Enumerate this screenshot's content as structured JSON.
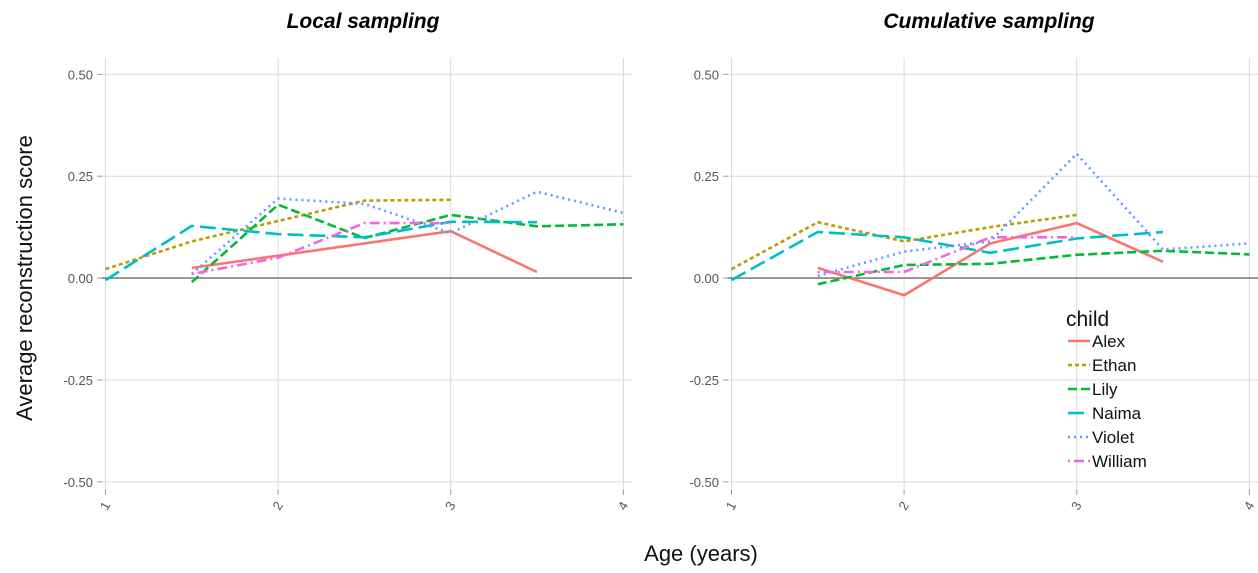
{
  "chart_data": {
    "type": "line",
    "ylabel": "Average reconstruction score",
    "xlabel": "Age (years)",
    "xlim": [
      0.98,
      4.05
    ],
    "ylim": [
      -0.52,
      0.54
    ],
    "x_ticks": [
      1,
      2,
      3,
      4
    ],
    "x_tick_labels": [
      "1",
      "2",
      "3",
      "4"
    ],
    "y_ticks": [
      0.5,
      0.25,
      0.0,
      -0.25,
      -0.5
    ],
    "y_tick_labels": [
      "0.50",
      "0.25",
      "0.00",
      "-0.25",
      "-0.50"
    ],
    "grid": true,
    "legend": {
      "title": "child",
      "placement": "bottom-right of right panel",
      "entries": [
        "Alex",
        "Ethan",
        "Lily",
        "Naima",
        "Violet",
        "William"
      ]
    },
    "series_styles": [
      {
        "name": "Alex",
        "color": "#F8766D",
        "dash": "solid"
      },
      {
        "name": "Ethan",
        "color": "#B79F00",
        "dash": "dotted-short"
      },
      {
        "name": "Lily",
        "color": "#00BA38",
        "dash": "dashed"
      },
      {
        "name": "Naima",
        "color": "#00BFC4",
        "dash": "long-dashed"
      },
      {
        "name": "Violet",
        "color": "#619CFF",
        "dash": "dotted"
      },
      {
        "name": "William",
        "color": "#F564E3",
        "dash": "dot-dash"
      }
    ],
    "panels": [
      {
        "title": "Local sampling",
        "series": [
          {
            "name": "Alex",
            "x": [
              1.5,
              3.0,
              3.5
            ],
            "y": [
              0.025,
              0.115,
              0.015
            ]
          },
          {
            "name": "Ethan",
            "x": [
              1.0,
              1.5,
              2.0,
              2.5,
              3.0
            ],
            "y": [
              0.022,
              0.09,
              0.14,
              0.19,
              0.192
            ]
          },
          {
            "name": "Lily",
            "x": [
              1.5,
              2.0,
              2.5,
              3.0,
              3.5,
              4.0
            ],
            "y": [
              -0.01,
              0.18,
              0.098,
              0.155,
              0.127,
              0.132
            ]
          },
          {
            "name": "Naima",
            "x": [
              1.0,
              1.5,
              2.0,
              2.5,
              3.0,
              3.5
            ],
            "y": [
              -0.005,
              0.128,
              0.108,
              0.1,
              0.138,
              0.137
            ]
          },
          {
            "name": "Violet",
            "x": [
              1.5,
              2.0,
              2.5,
              3.0,
              3.5,
              4.0
            ],
            "y": [
              0.01,
              0.195,
              0.182,
              0.11,
              0.212,
              0.16
            ]
          },
          {
            "name": "William",
            "x": [
              1.5,
              2.0,
              2.5,
              3.0
            ],
            "y": [
              0.01,
              0.05,
              0.135,
              0.135
            ]
          }
        ]
      },
      {
        "title": "Cumulative sampling",
        "series": [
          {
            "name": "Alex",
            "x": [
              1.5,
              2.0,
              2.5,
              3.0,
              3.5
            ],
            "y": [
              0.025,
              -0.042,
              0.085,
              0.135,
              0.04
            ]
          },
          {
            "name": "Ethan",
            "x": [
              1.0,
              1.5,
              2.0,
              2.5,
              3.0
            ],
            "y": [
              0.022,
              0.137,
              0.09,
              0.125,
              0.155
            ]
          },
          {
            "name": "Lily",
            "x": [
              1.5,
              2.0,
              2.5,
              3.0,
              3.5,
              4.0
            ],
            "y": [
              -0.015,
              0.032,
              0.035,
              0.057,
              0.067,
              0.058
            ]
          },
          {
            "name": "Naima",
            "x": [
              1.0,
              1.5,
              2.0,
              2.5,
              3.0,
              3.5
            ],
            "y": [
              -0.005,
              0.113,
              0.1,
              0.062,
              0.097,
              0.113
            ]
          },
          {
            "name": "Violet",
            "x": [
              1.5,
              2.0,
              2.5,
              3.0,
              3.5,
              4.0
            ],
            "y": [
              0.005,
              0.065,
              0.09,
              0.305,
              0.07,
              0.085
            ]
          },
          {
            "name": "William",
            "x": [
              1.5,
              2.0,
              2.5,
              3.0
            ],
            "y": [
              0.015,
              0.015,
              0.1,
              0.1
            ]
          }
        ]
      }
    ]
  }
}
